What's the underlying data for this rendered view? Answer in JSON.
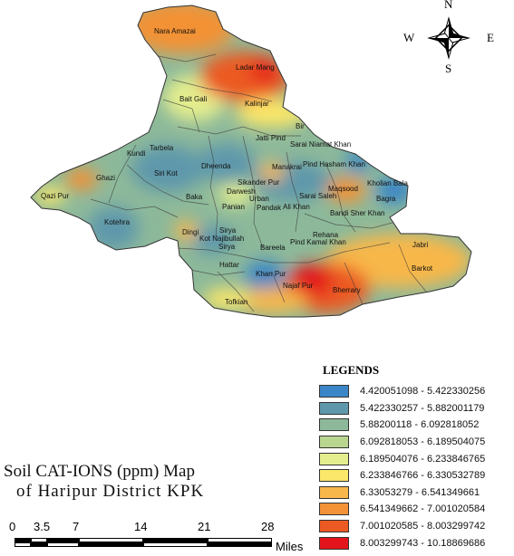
{
  "compass": {
    "north": "N",
    "south": "S",
    "east": "E",
    "west": "W"
  },
  "places": [
    {
      "name": "Nara Amazai"
    },
    {
      "name": "Ladar Mang"
    },
    {
      "name": "Bait Gali"
    },
    {
      "name": "Kalinjar"
    },
    {
      "name": "Bir"
    },
    {
      "name": "Jatti Pind"
    },
    {
      "name": "Sarai Niamat Khan"
    },
    {
      "name": "Tarbela"
    },
    {
      "name": "Kundi"
    },
    {
      "name": "Siri Kot"
    },
    {
      "name": "Dheenda"
    },
    {
      "name": "Manakrai"
    },
    {
      "name": "Pind Hasham Khan"
    },
    {
      "name": "Ghazi"
    },
    {
      "name": "Sikander Pur"
    },
    {
      "name": "Maqsood"
    },
    {
      "name": "Kholian Bala"
    },
    {
      "name": "Darwesh"
    },
    {
      "name": "Sarai Saleh"
    },
    {
      "name": "Qazi Pur"
    },
    {
      "name": "Baka"
    },
    {
      "name": "Urban"
    },
    {
      "name": "Bagra"
    },
    {
      "name": "Panian"
    },
    {
      "name": "Pandak"
    },
    {
      "name": "Ali Khan"
    },
    {
      "name": "Bandi Sher Khan"
    },
    {
      "name": "Kotehra"
    },
    {
      "name": "Dingi"
    },
    {
      "name": "Sirya"
    },
    {
      "name": "Rehana"
    },
    {
      "name": "Kot Najibullah"
    },
    {
      "name": "Pind Kamal Khan"
    },
    {
      "name": "Jabri"
    },
    {
      "name": "Sirya"
    },
    {
      "name": "Bareela"
    },
    {
      "name": "Hattar"
    },
    {
      "name": "Barkot"
    },
    {
      "name": "Khan Pur"
    },
    {
      "name": "Najaf Pur"
    },
    {
      "name": "Bherrary"
    },
    {
      "name": "Tofkian"
    }
  ],
  "legend": {
    "title": "LEGENDS",
    "items": [
      {
        "label": "4.420051098 - 5.422330256",
        "color": "#3b86c6"
      },
      {
        "label": "5.422330257 - 5.882001179",
        "color": "#5f98ab"
      },
      {
        "label": "5.88200118 - 6.092818052",
        "color": "#8db99a"
      },
      {
        "label": "6.092818053 - 6.189504075",
        "color": "#b9d691"
      },
      {
        "label": "6.189504076 - 6.233846765",
        "color": "#e4ee8e"
      },
      {
        "label": "6.233846766 - 6.330532789",
        "color": "#fbe769"
      },
      {
        "label": "6.33053279 - 6.541349661",
        "color": "#f8b74a"
      },
      {
        "label": "6.541349662 - 7.001020584",
        "color": "#f39236"
      },
      {
        "label": "7.001020585 - 8.003299742",
        "color": "#ec5a24"
      },
      {
        "label": "8.003299743 - 10.18869686",
        "color": "#e3141c"
      }
    ]
  },
  "title": {
    "line1": "Soil CAT-IONS (ppm) Map",
    "line2": "of  Haripur  District  KPK"
  },
  "scale": {
    "ticks": [
      "0",
      "3.5",
      "7",
      "14",
      "21",
      "28"
    ],
    "unit": "Miles"
  }
}
